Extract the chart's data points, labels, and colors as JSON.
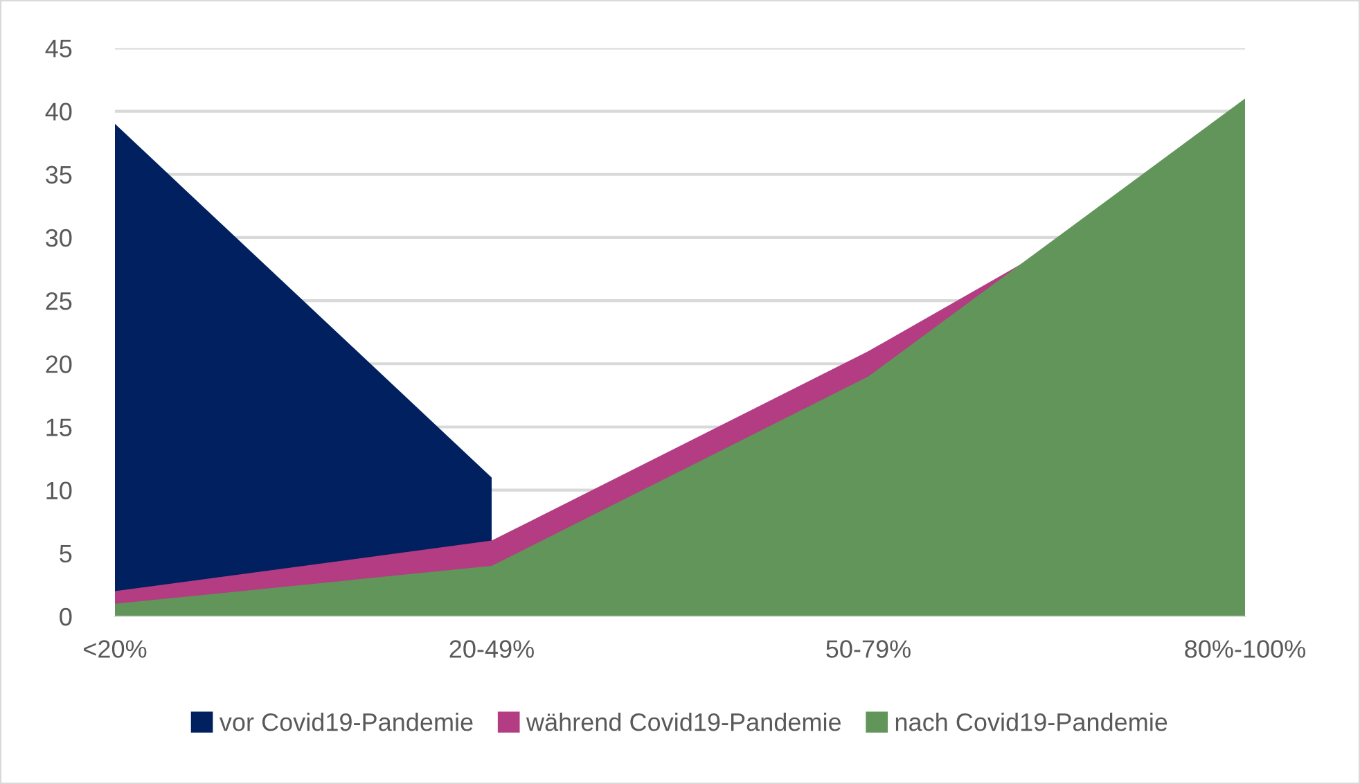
{
  "chart_data": {
    "type": "area",
    "categories": [
      "<20%",
      "20-49%",
      "50-79%",
      "80%-100%"
    ],
    "series": [
      {
        "name": "vor Covid19-Pandemie",
        "color": "#002060",
        "values": [
          39,
          11,
          null,
          null
        ]
      },
      {
        "name": "während Covid19-Pandemie",
        "color": "#b33c83",
        "values": [
          2,
          6,
          21,
          38
        ]
      },
      {
        "name": "nach Covid19-Pandemie",
        "color": "#619559",
        "values": [
          1,
          4,
          19,
          41
        ]
      }
    ],
    "ylim": [
      0,
      45
    ],
    "yticks": [
      0,
      5,
      10,
      15,
      20,
      25,
      30,
      35,
      40,
      45
    ],
    "grid": "y",
    "legend": "bottom"
  }
}
